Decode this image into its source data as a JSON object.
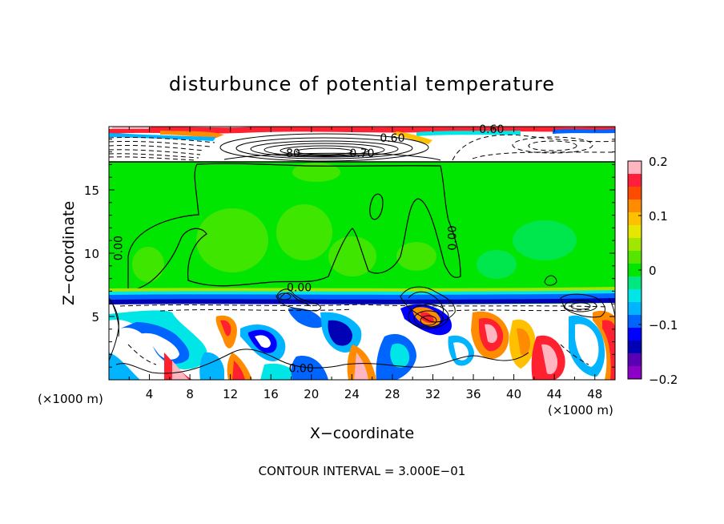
{
  "chart_data": {
    "type": "heatmap",
    "title": "disturbunce of potential temperature",
    "xlabel": "X−coordinate",
    "ylabel": "Z−coordinate",
    "x_unit": "(×1000 m)",
    "x_unit_right": "(×1000 m)",
    "xlim": [
      0,
      50
    ],
    "ylim": [
      0,
      20
    ],
    "x_ticks": [
      4,
      8,
      12,
      16,
      20,
      24,
      28,
      32,
      36,
      40,
      44,
      48
    ],
    "y_ticks": [
      5,
      10,
      15
    ],
    "colorbar": {
      "range": [
        -0.2,
        0.2
      ],
      "tick_values": [
        0.2,
        0.1,
        0,
        -0.1,
        -0.2
      ],
      "tick_labels": [
        "0.2",
        "0.1",
        "0",
        "−0.1",
        "−0.2"
      ],
      "colors": [
        "#ffb6c1",
        "#ff1f3a",
        "#ff4b00",
        "#ff8c00",
        "#ffc000",
        "#e6e600",
        "#a0e600",
        "#55e600",
        "#00e600",
        "#00e680",
        "#00e6e6",
        "#00b4ff",
        "#0064ff",
        "#0000ff",
        "#0000b4",
        "#5a00b4",
        "#8c00c8"
      ]
    },
    "footer": "CONTOUR INTERVAL = 3.000E−01",
    "contour_labels": [
      {
        "text": "0.00",
        "x": 1.3,
        "y": 10.4,
        "rotate": -90
      },
      {
        "text": "0.00",
        "x": 34.3,
        "y": 11.2,
        "rotate": -90
      },
      {
        "text": "0.00",
        "x": 18.8,
        "y": 7.0,
        "rotate": 0
      },
      {
        "text": "0.00",
        "x": 19.0,
        "y": 0.6,
        "rotate": 0
      },
      {
        "text": "0.60",
        "x": 28.0,
        "y": 18.8,
        "rotate": 0
      },
      {
        "text": "0.60",
        "x": 37.8,
        "y": 19.5,
        "rotate": 0
      },
      {
        "text": "0.70",
        "x": 25.0,
        "y": 17.6,
        "rotate": 0
      },
      {
        "text": "80",
        "x": 18.2,
        "y": 17.6,
        "rotate": 0
      }
    ]
  }
}
